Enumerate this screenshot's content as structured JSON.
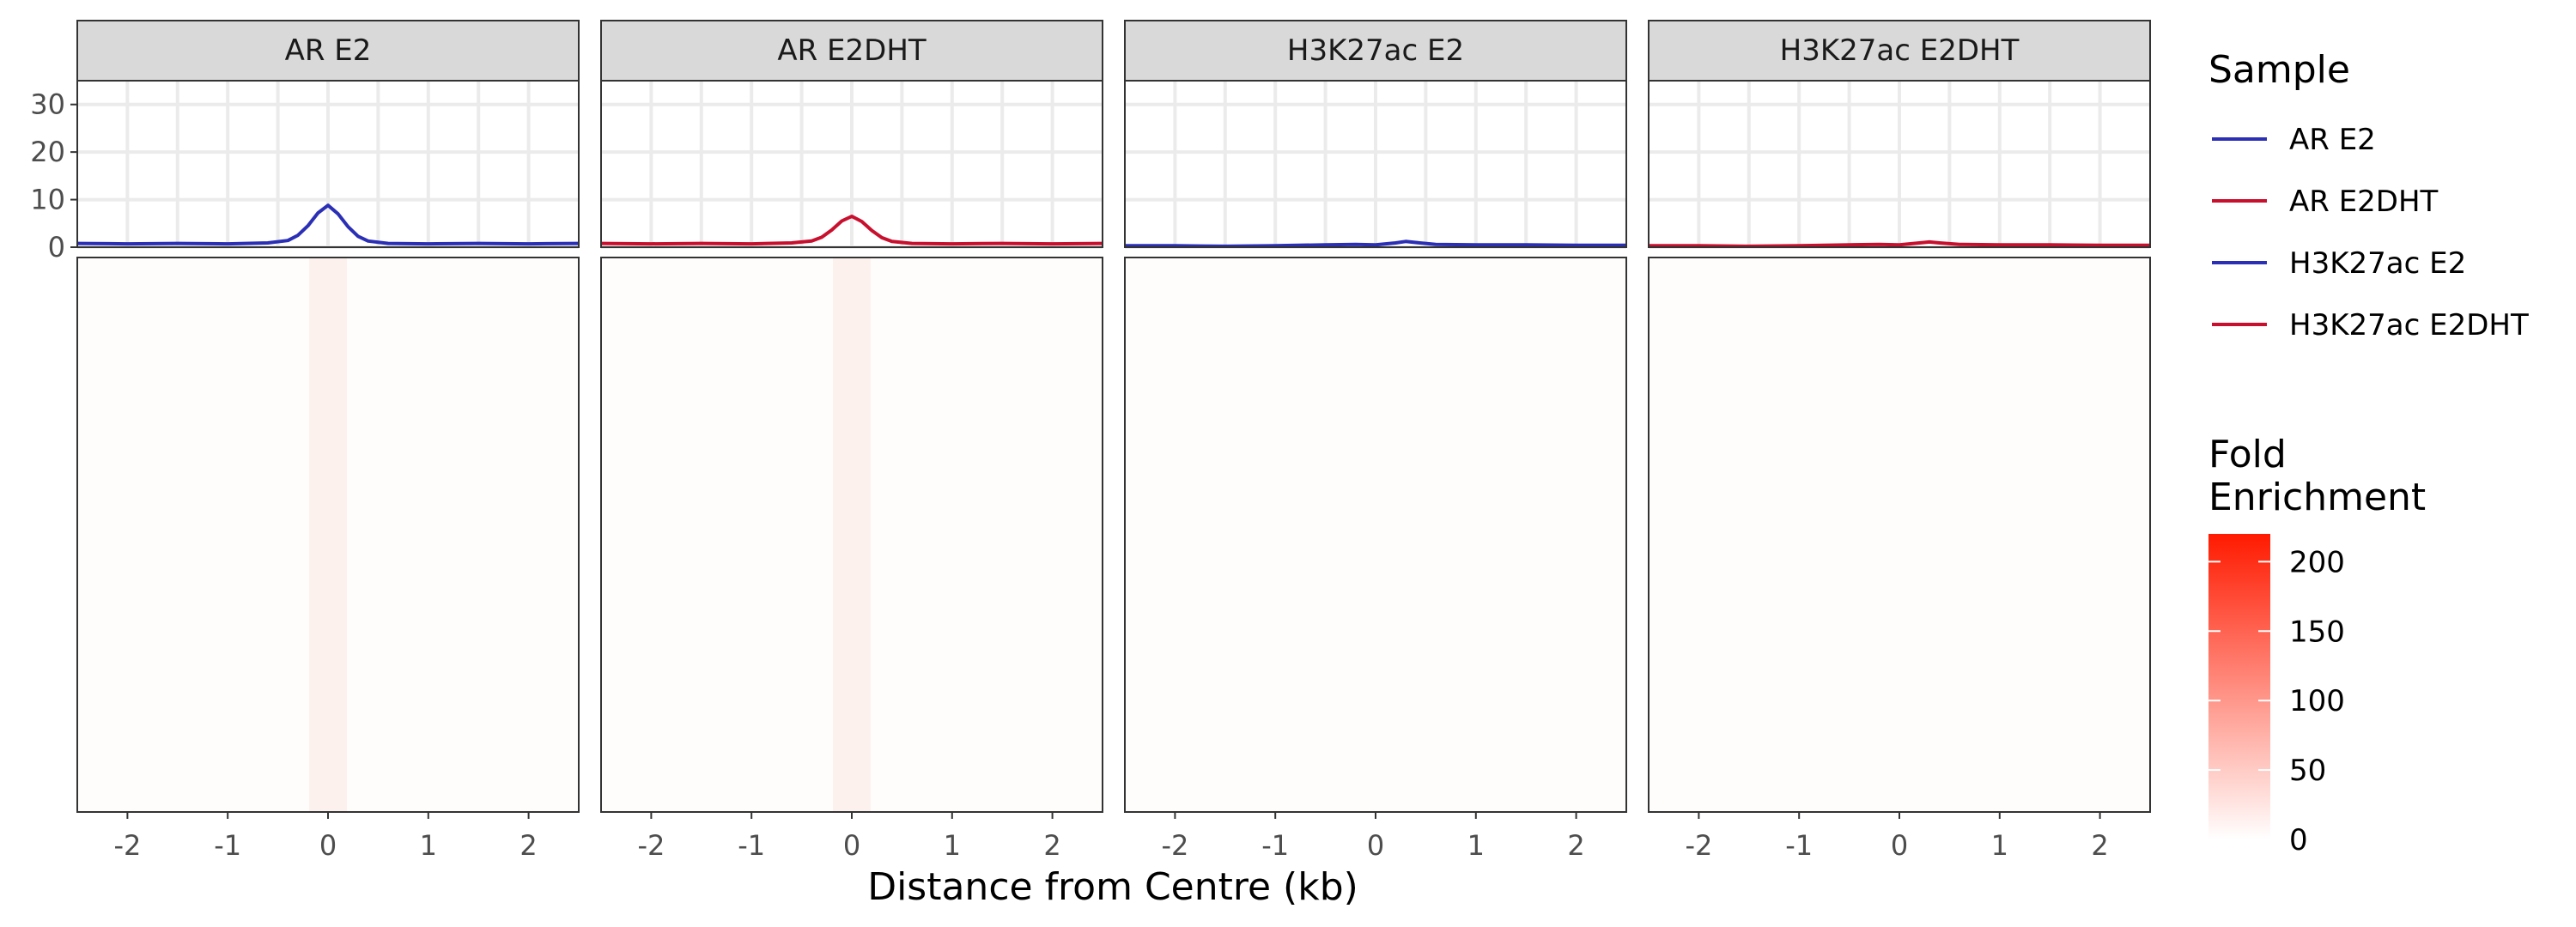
{
  "chart_data": {
    "type": "line",
    "xlabel": "Distance from Centre (kb)",
    "x_ticks": [
      -2,
      -1,
      0,
      1,
      2
    ],
    "x_tick_labels": [
      "-2",
      "-1",
      "0",
      "1",
      "2"
    ],
    "xlim": [
      -2.5,
      2.5
    ],
    "profile_ylim": [
      0,
      35
    ],
    "profile_y_ticks": [
      0,
      10,
      20,
      30
    ],
    "profile_y_tick_labels": [
      "0",
      "10",
      "20",
      "30"
    ],
    "panels": [
      {
        "label": "AR E2",
        "color": "#2b2fb5",
        "profile": {
          "x": [
            -2.5,
            -2.0,
            -1.5,
            -1.0,
            -0.6,
            -0.4,
            -0.3,
            -0.2,
            -0.1,
            0.0,
            0.1,
            0.2,
            0.3,
            0.4,
            0.6,
            1.0,
            1.5,
            2.0,
            2.5
          ],
          "y": [
            0.8,
            0.7,
            0.8,
            0.7,
            0.9,
            1.4,
            2.5,
            4.5,
            7.2,
            8.8,
            7.0,
            4.3,
            2.3,
            1.3,
            0.8,
            0.7,
            0.8,
            0.7,
            0.8
          ]
        }
      },
      {
        "label": "AR E2DHT",
        "color": "#c8102e",
        "profile": {
          "x": [
            -2.5,
            -2.0,
            -1.5,
            -1.0,
            -0.6,
            -0.4,
            -0.3,
            -0.2,
            -0.1,
            0.0,
            0.1,
            0.2,
            0.3,
            0.4,
            0.6,
            1.0,
            1.5,
            2.0,
            2.5
          ],
          "y": [
            0.8,
            0.7,
            0.8,
            0.7,
            0.9,
            1.3,
            2.1,
            3.6,
            5.5,
            6.5,
            5.4,
            3.5,
            2.0,
            1.2,
            0.8,
            0.7,
            0.8,
            0.7,
            0.8
          ]
        }
      },
      {
        "label": "H3K27ac E2",
        "color": "#2b2fb5",
        "profile": {
          "x": [
            -2.5,
            -2.0,
            -1.5,
            -1.0,
            -0.5,
            -0.2,
            0.0,
            0.2,
            0.3,
            0.4,
            0.6,
            1.0,
            1.5,
            2.0,
            2.5
          ],
          "y": [
            0.3,
            0.3,
            0.2,
            0.3,
            0.5,
            0.6,
            0.5,
            0.9,
            1.2,
            1.0,
            0.6,
            0.5,
            0.5,
            0.4,
            0.4
          ]
        }
      },
      {
        "label": "H3K27ac E2DHT",
        "color": "#c8102e",
        "profile": {
          "x": [
            -2.5,
            -2.0,
            -1.5,
            -1.0,
            -0.5,
            -0.2,
            0.0,
            0.2,
            0.3,
            0.4,
            0.6,
            1.0,
            1.5,
            2.0,
            2.5
          ],
          "y": [
            0.3,
            0.3,
            0.2,
            0.3,
            0.5,
            0.6,
            0.5,
            0.9,
            1.1,
            0.9,
            0.6,
            0.5,
            0.5,
            0.4,
            0.4
          ]
        }
      }
    ],
    "legend": {
      "title": "Sample",
      "placement": "right",
      "entries": [
        {
          "label": "AR E2",
          "color": "#2b2fb5"
        },
        {
          "label": "AR E2DHT",
          "color": "#c8102e"
        },
        {
          "label": "H3K27ac E2",
          "color": "#2b2fb5"
        },
        {
          "label": "H3K27ac E2DHT",
          "color": "#c8102e"
        }
      ]
    },
    "heatmap": {
      "value_scale": {
        "min": 0,
        "max": 220,
        "low_color": "#ffffff",
        "high_color": "#ff1a00"
      },
      "colorbar_title": "Fold Enrichment",
      "colorbar_title_lines": [
        "Fold",
        "Enrichment"
      ],
      "colorbar_ticks": [
        0,
        50,
        100,
        150,
        200
      ],
      "colorbar_tick_labels": [
        "0",
        "50",
        "100",
        "150",
        "200"
      ]
    }
  }
}
